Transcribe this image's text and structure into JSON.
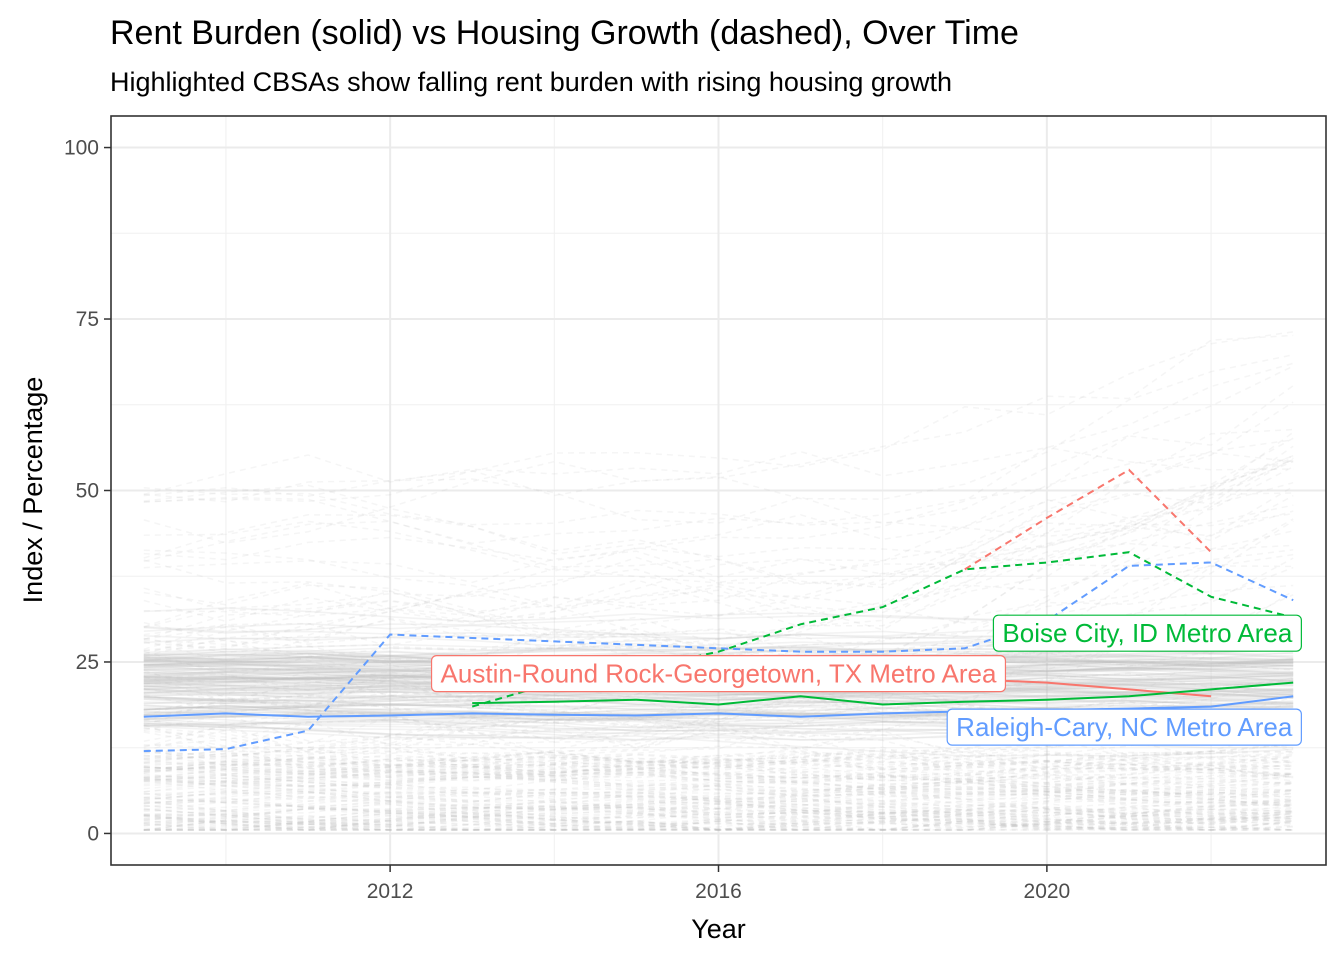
{
  "chart_data": {
    "type": "line",
    "title": "Rent Burden (solid) vs Housing Growth (dashed), Over Time",
    "subtitle": "Highlighted CBSAs show falling rent burden with rising housing growth",
    "xlabel": "Year",
    "ylabel": "Index / Percentage",
    "xlim": [
      2008.6,
      2023.4
    ],
    "ylim": [
      -4.6,
      104.6
    ],
    "x_ticks": [
      "2012",
      "2016",
      "2020"
    ],
    "y_ticks": [
      "0",
      "25",
      "50",
      "75",
      "100"
    ],
    "grid": true,
    "legend": "none",
    "background_series": {
      "description": "many grey CBSA lines (solid rent burden and dashed housing growth)",
      "color": "#bebebe",
      "rent_burden_band": [
        14,
        26
      ],
      "housing_growth_range": [
        0,
        100
      ]
    },
    "series": [
      {
        "name": "Austin-Round Rock-Georgetown, TX Metro Area",
        "color": "#F8766D",
        "rent_burden": {
          "x": [
            2019,
            2020,
            2021,
            2022
          ],
          "y": [
            22.5,
            22.0,
            21.0,
            20.0
          ]
        },
        "housing_growth": {
          "x": [
            2019,
            2020,
            2021,
            2022
          ],
          "y": [
            38.5,
            46,
            53,
            41
          ]
        }
      },
      {
        "name": "Boise City, ID Metro Area",
        "color": "#00BA38",
        "rent_burden": {
          "x": [
            2013,
            2014,
            2015,
            2016,
            2017,
            2018,
            2019,
            2020,
            2021,
            2022,
            2023
          ],
          "y": [
            19.0,
            19.2,
            19.5,
            18.8,
            20.0,
            18.8,
            19.2,
            19.5,
            20.0,
            21.0,
            22.0
          ]
        },
        "housing_growth": {
          "x": [
            2013,
            2014,
            2015,
            2016,
            2017,
            2018,
            2019,
            2020,
            2021,
            2022,
            2023
          ],
          "y": [
            18.5,
            22,
            24,
            26.5,
            30.5,
            33,
            38.5,
            39.5,
            41,
            34.5,
            31.5
          ]
        }
      },
      {
        "name": "Raleigh-Cary, NC Metro Area",
        "color": "#619CFF",
        "rent_burden": {
          "x": [
            2009,
            2010,
            2011,
            2012,
            2013,
            2014,
            2015,
            2016,
            2017,
            2018,
            2019,
            2020,
            2021,
            2022,
            2023
          ],
          "y": [
            17.0,
            17.5,
            17.0,
            17.2,
            17.5,
            17.3,
            17.2,
            17.5,
            17.0,
            17.5,
            17.8,
            18.0,
            18.2,
            18.5,
            20.0
          ]
        },
        "housing_growth": {
          "x": [
            2009,
            2010,
            2011,
            2012,
            2013,
            2014,
            2015,
            2016,
            2017,
            2018,
            2019,
            2020,
            2021,
            2022,
            2023
          ],
          "y": [
            12,
            12.3,
            15,
            29,
            28.5,
            28,
            27.5,
            27,
            26.5,
            26.5,
            27,
            31,
            39,
            39.5,
            34
          ]
        }
      }
    ]
  }
}
